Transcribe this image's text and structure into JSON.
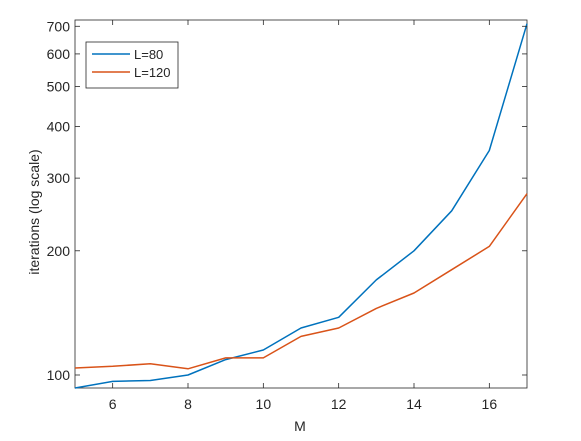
{
  "chart_data": {
    "type": "line",
    "title": "",
    "xlabel": "M",
    "ylabel": "iterations (log scale)",
    "x": [
      5,
      6,
      7,
      8,
      9,
      10,
      11,
      12,
      13,
      14,
      15,
      16,
      17
    ],
    "xlim": [
      5,
      17
    ],
    "ylim": [
      93,
      725
    ],
    "yscale": "log",
    "xticks": [
      6,
      8,
      10,
      12,
      14,
      16
    ],
    "yticks": [
      100,
      200,
      300,
      400,
      500,
      600,
      700
    ],
    "grid": false,
    "legend_location": "top-left",
    "series": [
      {
        "name": "L=80",
        "color": "#0072BD",
        "values": [
          93,
          96.5,
          97,
          100,
          109,
          115,
          130,
          138,
          170,
          200,
          250,
          350,
          710
        ]
      },
      {
        "name": "L=120",
        "color": "#D95319",
        "values": [
          104,
          105,
          106.5,
          103.5,
          110,
          110,
          124,
          130,
          145,
          158,
          180,
          205,
          275
        ]
      }
    ]
  }
}
